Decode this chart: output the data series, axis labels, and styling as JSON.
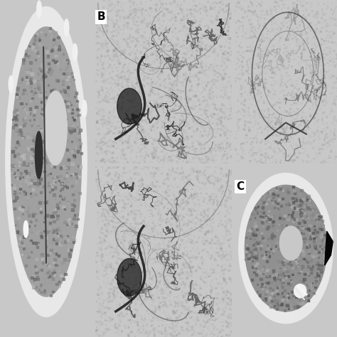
{
  "background_color": "#c8c8c8",
  "panels": [
    {
      "id": "A",
      "label": "",
      "col": 0,
      "row": 0,
      "colspan": 1,
      "rowspan": 2,
      "type": "ct_brain_gray",
      "bg": "#000000",
      "scan_color": "#888888"
    },
    {
      "id": "B_top",
      "label": "B",
      "col": 1,
      "row": 0,
      "colspan": 1,
      "rowspan": 1,
      "type": "angio_gray",
      "bg": "#b0b0a8",
      "scan_color": "#909090"
    },
    {
      "id": "B_bot",
      "label": "",
      "col": 1,
      "row": 1,
      "colspan": 1,
      "rowspan": 1,
      "type": "angio_gray",
      "bg": "#b0b0a8",
      "scan_color": "#909090"
    },
    {
      "id": "C_top",
      "label": "",
      "col": 2,
      "row": 0,
      "colspan": 1,
      "rowspan": 1,
      "type": "angio_small",
      "bg": "#b8b8b0",
      "scan_color": "#909090"
    },
    {
      "id": "C_bot",
      "label": "C",
      "col": 2,
      "row": 1,
      "colspan": 1,
      "rowspan": 1,
      "type": "ct_brain_gray2",
      "bg": "#000000",
      "scan_color": "#888888"
    }
  ],
  "label_fontsize": 11,
  "label_color": "#ffffff",
  "label_bg": "#ffffff",
  "label_text_color": "#000000"
}
